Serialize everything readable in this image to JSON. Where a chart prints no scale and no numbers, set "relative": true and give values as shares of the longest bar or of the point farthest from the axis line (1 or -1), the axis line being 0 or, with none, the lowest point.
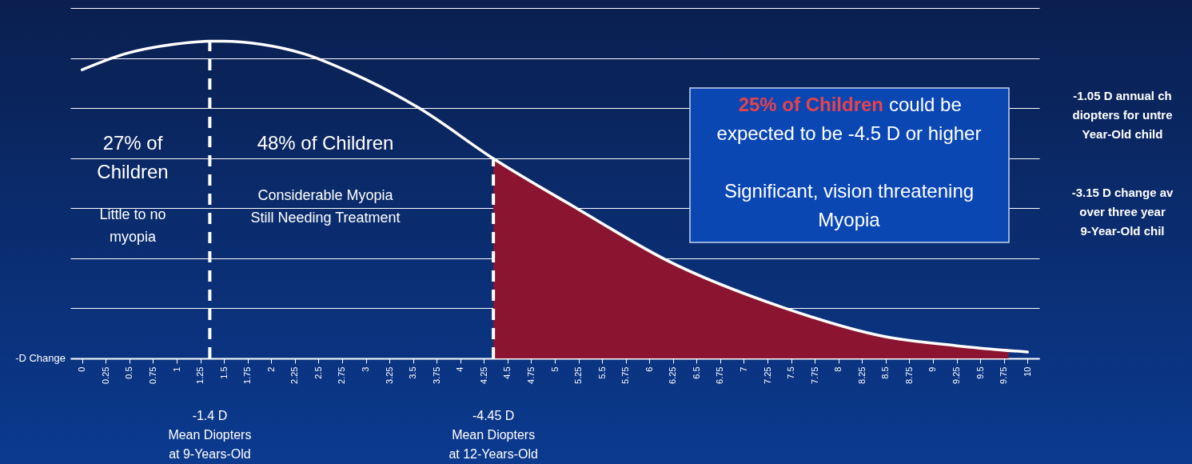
{
  "chart_data": {
    "type": "line",
    "relative": true,
    "grid": "y",
    "xlabel": "-D Change",
    "xlim": [
      -0.125,
      10.125
    ],
    "xticks": [
      0,
      0.25,
      0.5,
      0.75,
      1,
      1.25,
      1.5,
      1.75,
      2,
      2.25,
      2.5,
      2.75,
      3,
      3.25,
      3.5,
      3.75,
      4,
      4.25,
      4.5,
      4.75,
      5,
      5.25,
      5.5,
      5.75,
      6,
      6.25,
      6.5,
      6.75,
      7,
      7.25,
      7.5,
      7.75,
      8,
      8.25,
      8.5,
      8.75,
      9,
      9.25,
      9.5,
      9.75,
      10
    ],
    "series": [
      {
        "type": "area",
        "color": "#8b1530",
        "x": [
          4.35,
          5.25,
          6.18,
          7.42,
          8.47,
          9.25,
          9.8
        ],
        "values": [
          0.63,
          0.47,
          0.31,
          0.16,
          0.07,
          0.04,
          0.03
        ]
      },
      {
        "type": "line",
        "color": "#ffffff",
        "x": [
          0,
          0.45,
          0.96,
          1.35,
          1.49,
          1.9,
          2.35,
          2.85,
          3.56,
          4.35,
          5.25,
          6.18,
          7.42,
          8.47,
          9.25,
          10
        ],
        "values": [
          0.91,
          0.96,
          0.99,
          1,
          1,
          0.99,
          0.96,
          0.9,
          0.79,
          0.63,
          0.47,
          0.31,
          0.16,
          0.07,
          0.04,
          0.02
        ]
      }
    ],
    "ref_lines": [
      {
        "axis": "x",
        "value": 1.35,
        "color": "#ffffff",
        "line_style": "dashed"
      },
      {
        "axis": "x",
        "value": 4.35,
        "color": "#ffffff",
        "line_style": "dashed"
      }
    ],
    "annotations": [
      "27% of\nChildren",
      "Little to no\nmyopia",
      "48% of Children",
      "Considerable Myopia\nStill Needing Treatment",
      "25% of Children",
      "could be",
      "expected to be -4.5 D or higher",
      "Significant, vision threatening\nMyopia",
      "-1.05 D annual ch\ndiopters for untre\nYear-Old child",
      "-3.15 D change av\nover three year\n9-Year-Old chil",
      "-1.4 D\nMean Diopters\nat 9-Years-Old",
      "-4.45 D\nMean Diopters\nat 12-Years-Old"
    ]
  }
}
